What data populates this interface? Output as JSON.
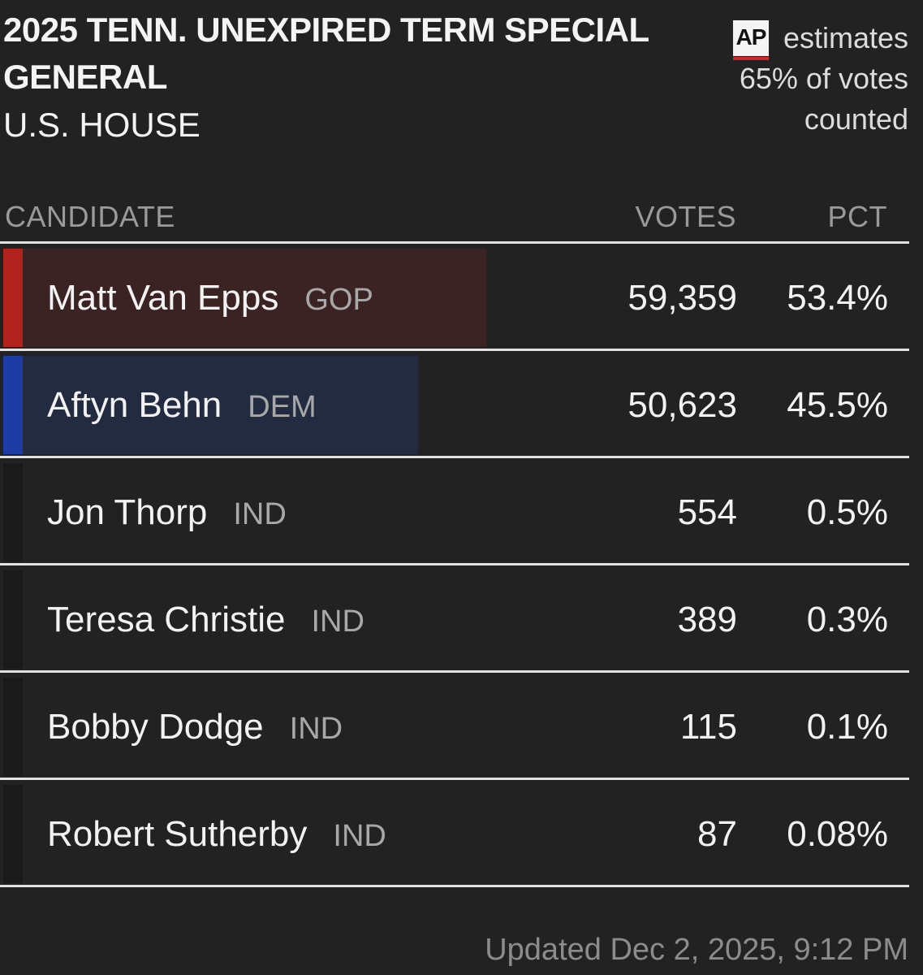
{
  "header": {
    "title": "2025 TENN. UNEXPIRED TERM SPECIAL GENERAL",
    "office": "U.S. HOUSE",
    "ap_logo": "AP",
    "estimates_label": "estimates",
    "counted_line1": "65% of votes",
    "counted_line2": "counted",
    "votes_counted_pct": 65
  },
  "columns": {
    "candidate": "CANDIDATE",
    "votes": "VOTES",
    "pct": "PCT"
  },
  "colors": {
    "gop": "#b3231e",
    "dem": "#1d3ca6",
    "ind": "#1a1a1a",
    "gop_fill": "#3a2322",
    "dem_fill": "#222b40"
  },
  "candidates": [
    {
      "name": "Matt Van Epps",
      "party": "GOP",
      "votes": "59,359",
      "pct": "53.4%",
      "share": 0.534
    },
    {
      "name": "Aftyn Behn",
      "party": "DEM",
      "votes": "50,623",
      "pct": "45.5%",
      "share": 0.455
    },
    {
      "name": "Jon Thorp",
      "party": "IND",
      "votes": "554",
      "pct": "0.5%",
      "share": 0.005
    },
    {
      "name": "Teresa Christie",
      "party": "IND",
      "votes": "389",
      "pct": "0.3%",
      "share": 0.003
    },
    {
      "name": "Bobby Dodge",
      "party": "IND",
      "votes": "115",
      "pct": "0.1%",
      "share": 0.001
    },
    {
      "name": "Robert Sutherby",
      "party": "IND",
      "votes": "87",
      "pct": "0.08%",
      "share": 0.0008
    }
  ],
  "footer": {
    "updated": "Updated Dec 2, 2025, 9:12 PM"
  }
}
